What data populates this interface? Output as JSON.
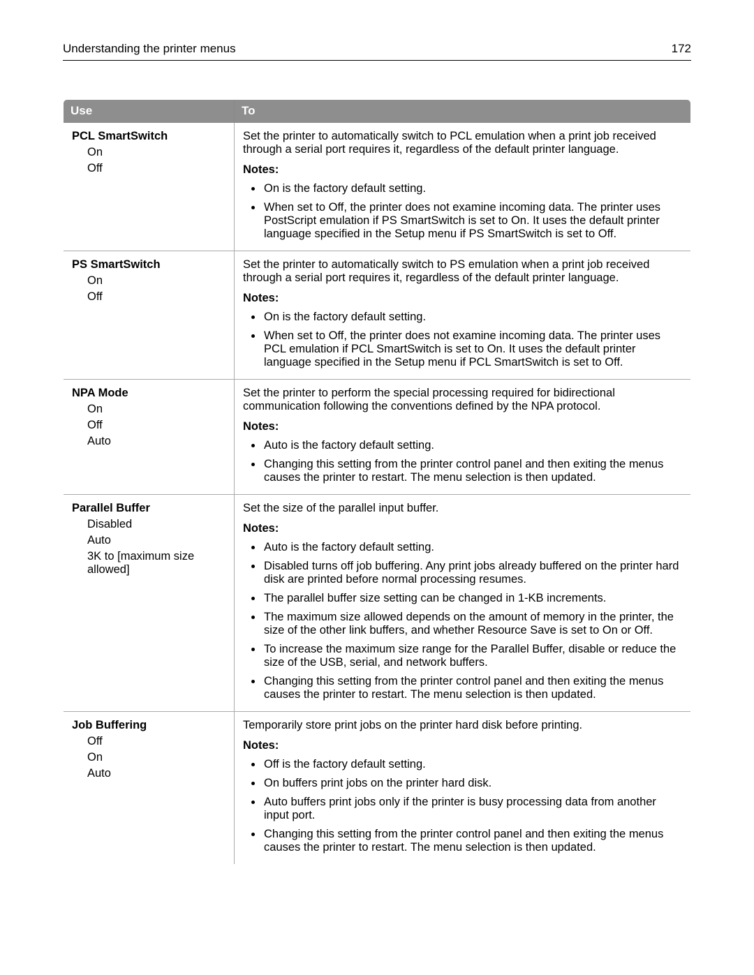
{
  "header": {
    "title": "Understanding the printer menus",
    "page": "172"
  },
  "table": {
    "head": {
      "use": "Use",
      "to": "To"
    },
    "rows": [
      {
        "title": "PCL SmartSwitch",
        "options": [
          "On",
          "Off"
        ],
        "desc": "Set the printer to automatically switch to PCL emulation when a print job received through a serial port requires it, regardless of the default printer language.",
        "notes_label": "Notes:",
        "notes": [
          "On is the factory default setting.",
          "When set to Off, the printer does not examine incoming data. The printer uses PostScript emulation if PS SmartSwitch is set to On. It uses the default printer language specified in the Setup menu if PS SmartSwitch is set to Off."
        ]
      },
      {
        "title": "PS SmartSwitch",
        "options": [
          "On",
          "Off"
        ],
        "desc": "Set the printer to automatically switch to PS emulation when a print job received through a serial port requires it, regardless of the default printer language.",
        "notes_label": "Notes:",
        "notes": [
          "On is the factory default setting.",
          "When set to Off, the printer does not examine incoming data. The printer uses PCL emulation if PCL SmartSwitch is set to On. It uses the default printer language specified in the Setup menu if PCL SmartSwitch is set to Off."
        ]
      },
      {
        "title": "NPA Mode",
        "options": [
          "On",
          "Off",
          "Auto"
        ],
        "desc": "Set the printer to perform the special processing required for bidirectional communication following the conventions defined by the NPA protocol.",
        "notes_label": "Notes:",
        "notes": [
          "Auto is the factory default setting.",
          "Changing this setting from the printer control panel and then exiting the menus causes the printer to restart. The menu selection is then updated."
        ]
      },
      {
        "title": "Parallel Buffer",
        "options": [
          "Disabled",
          "Auto",
          "3K to [maximum size allowed]"
        ],
        "desc": "Set the size of the parallel input buffer.",
        "notes_label": "Notes:",
        "notes": [
          "Auto is the factory default setting.",
          "Disabled turns off job buffering. Any print jobs already buffered on the printer hard disk are printed before normal processing resumes.",
          "The parallel buffer size setting can be changed in 1-KB increments.",
          "The maximum size allowed depends on the amount of memory in the printer, the size of the other link buffers, and whether Resource Save is set to On or Off.",
          "To increase the maximum size range for the Parallel Buffer, disable or reduce the size of the USB, serial, and network buffers.",
          "Changing this setting from the printer control panel and then exiting the menus causes the printer to restart. The menu selection is then updated."
        ]
      },
      {
        "title": "Job Buffering",
        "options": [
          "Off",
          "On",
          "Auto"
        ],
        "desc": "Temporarily store print jobs on the printer hard disk before printing.",
        "notes_label": "Notes:",
        "notes": [
          "Off is the factory default setting.",
          "On buffers print jobs on the printer hard disk.",
          "Auto buffers print jobs only if the printer is busy processing data from another input port.",
          "Changing this setting from the printer control panel and then exiting the menus causes the printer to restart. The menu selection is then updated."
        ]
      }
    ]
  }
}
